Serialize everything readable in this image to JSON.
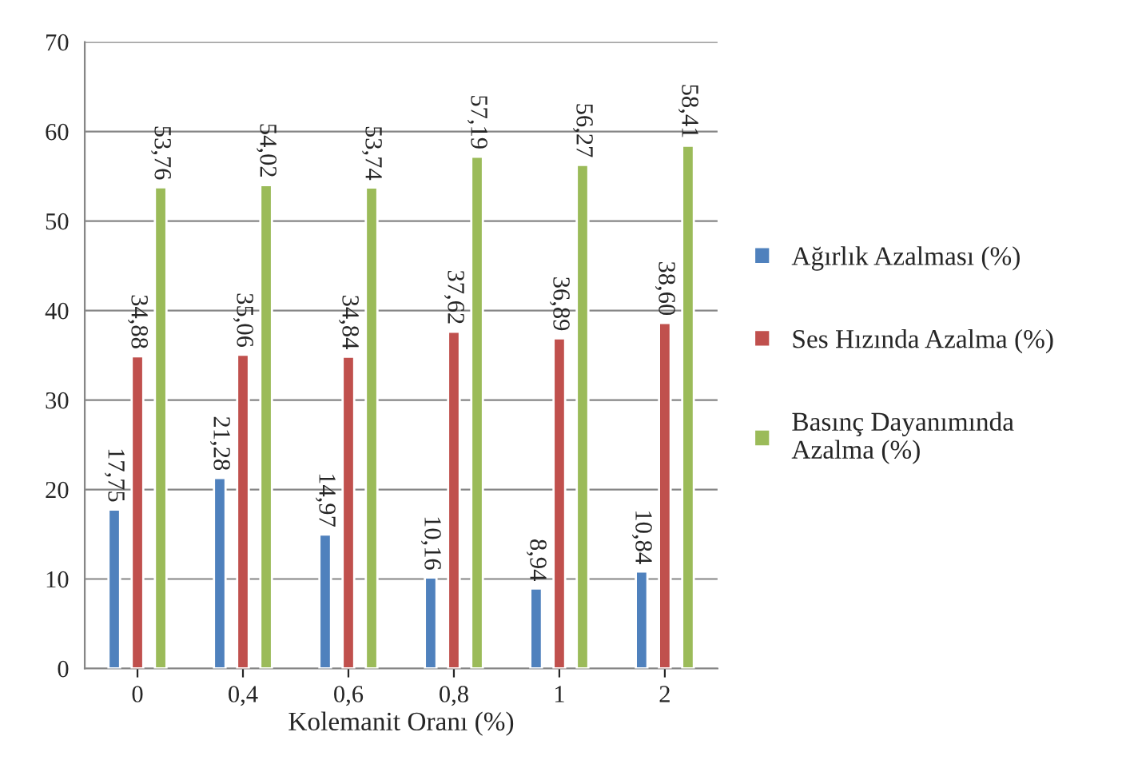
{
  "chart_data": {
    "type": "bar",
    "xlabel": "Kolemanit Oranı (%)",
    "categories": [
      "0",
      "0,4",
      "0,6",
      "0,8",
      "1",
      "2"
    ],
    "series": [
      {
        "name": "Ağırlık Azalması (%)",
        "color": "#4f81bd",
        "values": [
          17.75,
          21.28,
          14.97,
          10.16,
          8.94,
          10.84
        ],
        "value_labels": [
          "17,75",
          "21,28",
          "14,97",
          "10,16",
          "8,94",
          "10,84"
        ]
      },
      {
        "name": "Ses Hızında Azalma (%)",
        "color": "#c0504d",
        "values": [
          34.88,
          35.06,
          34.84,
          37.62,
          36.89,
          38.6
        ],
        "value_labels": [
          "34,88",
          "35,06",
          "34,84",
          "37,62",
          "36,89",
          "38,60"
        ]
      },
      {
        "name": "Basınç Dayanımında Azalma (%)",
        "color": "#9bbb59",
        "values": [
          53.76,
          54.02,
          53.74,
          57.19,
          56.27,
          58.41
        ],
        "value_labels": [
          "53,76",
          "54,02",
          "53,74",
          "57,19",
          "56,27",
          "58,41"
        ]
      }
    ],
    "ylim": [
      0,
      70
    ],
    "yticks": [
      0,
      10,
      20,
      30,
      40,
      50,
      60,
      70
    ],
    "grid": "y",
    "legend": "right"
  }
}
